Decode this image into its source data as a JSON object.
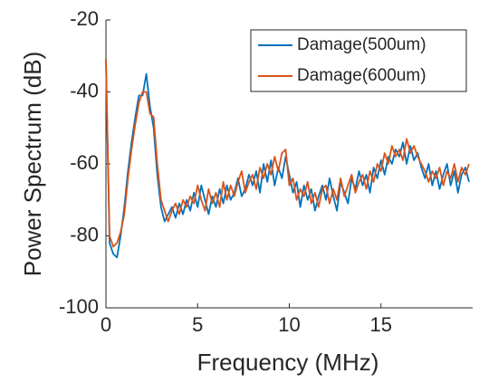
{
  "chart_data": {
    "type": "line",
    "xlabel": "Frequency (MHz)",
    "ylabel": "Power Spectrum (dB)",
    "x": [
      0,
      0.2,
      0.4,
      0.6,
      0.8,
      1,
      1.2,
      1.4,
      1.6,
      1.8,
      2,
      2.2,
      2.4,
      2.6,
      2.8,
      3,
      3.2,
      3.4,
      3.6,
      3.8,
      4,
      4.2,
      4.4,
      4.6,
      4.8,
      5,
      5.2,
      5.4,
      5.6,
      5.8,
      6,
      6.2,
      6.4,
      6.6,
      6.8,
      7,
      7.2,
      7.4,
      7.6,
      7.8,
      8,
      8.2,
      8.4,
      8.6,
      8.8,
      9,
      9.2,
      9.4,
      9.6,
      9.8,
      10,
      10.2,
      10.4,
      10.6,
      10.8,
      11,
      11.2,
      11.4,
      11.6,
      11.8,
      12,
      12.2,
      12.4,
      12.6,
      12.8,
      13,
      13.2,
      13.4,
      13.6,
      13.8,
      14,
      14.2,
      14.4,
      14.6,
      14.8,
      15,
      15.2,
      15.4,
      15.6,
      15.8,
      16,
      16.2,
      16.4,
      16.6,
      16.8,
      17,
      17.2,
      17.4,
      17.6,
      17.8,
      18,
      18.2,
      18.4,
      18.6,
      18.8,
      19,
      19.2,
      19.4,
      19.6,
      19.8
    ],
    "series": [
      {
        "name": "Damage(500um)",
        "color": "#0072bd",
        "values": [
          -31,
          -82,
          -85,
          -86,
          -80,
          -72,
          -62,
          -54,
          -47,
          -41,
          -41,
          -35,
          -44,
          -50,
          -63,
          -72,
          -76,
          -74,
          -72,
          -75,
          -71,
          -74,
          -70,
          -73,
          -68,
          -72,
          -66,
          -70,
          -74,
          -69,
          -72,
          -67,
          -71,
          -66,
          -70,
          -68,
          -64,
          -69,
          -67,
          -63,
          -66,
          -62,
          -68,
          -60,
          -65,
          -59,
          -66,
          -61,
          -64,
          -58,
          -63,
          -68,
          -65,
          -72,
          -66,
          -70,
          -67,
          -73,
          -69,
          -66,
          -70,
          -64,
          -69,
          -73,
          -65,
          -68,
          -71,
          -64,
          -67,
          -62,
          -66,
          -63,
          -68,
          -61,
          -64,
          -59,
          -63,
          -58,
          -60,
          -56,
          -58,
          -54,
          -60,
          -55,
          -59,
          -57,
          -61,
          -64,
          -60,
          -66,
          -62,
          -67,
          -63,
          -60,
          -66,
          -62,
          -68,
          -63,
          -61,
          -65
        ]
      },
      {
        "name": "Damage(600um)",
        "color": "#d95319",
        "values": [
          -31,
          -80,
          -83,
          -82,
          -79,
          -74,
          -64,
          -56,
          -49,
          -43,
          -40,
          -40,
          -46,
          -47,
          -60,
          -70,
          -73,
          -76,
          -73,
          -71,
          -74,
          -70,
          -72,
          -69,
          -71,
          -66,
          -70,
          -73,
          -67,
          -71,
          -68,
          -72,
          -65,
          -70,
          -66,
          -69,
          -65,
          -62,
          -68,
          -65,
          -63,
          -67,
          -61,
          -64,
          -60,
          -63,
          -58,
          -62,
          -57,
          -56,
          -66,
          -64,
          -70,
          -67,
          -69,
          -65,
          -71,
          -68,
          -72,
          -67,
          -66,
          -71,
          -67,
          -70,
          -64,
          -69,
          -66,
          -63,
          -68,
          -65,
          -63,
          -67,
          -62,
          -65,
          -60,
          -62,
          -57,
          -60,
          -55,
          -58,
          -56,
          -59,
          -53,
          -57,
          -55,
          -58,
          -60,
          -62,
          -65,
          -62,
          -64,
          -61,
          -66,
          -62,
          -64,
          -60,
          -65,
          -61,
          -63,
          -60
        ]
      }
    ],
    "xlim": [
      0,
      20
    ],
    "xticks": [
      0,
      5,
      10,
      15
    ],
    "ylim": [
      -100,
      -20
    ],
    "yticks": [
      -100,
      -80,
      -60,
      -40,
      -20
    ],
    "legend": "upper right"
  }
}
